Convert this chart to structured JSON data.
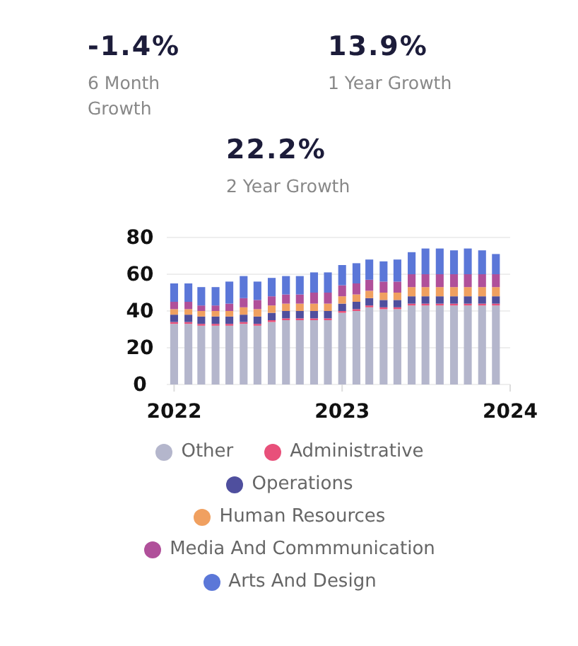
{
  "chart_data": [
    {
      "type": "other",
      "annotations": [
        "-1.4%",
        "6 Month Growth",
        "13.9%",
        "1 Year Growth",
        "22.2%",
        "2 Year Growth"
      ]
    },
    {
      "type": "bar",
      "stacked": true,
      "x": [
        "2022-01",
        "2022-02",
        "2022-03",
        "2022-04",
        "2022-05",
        "2022-06",
        "2022-07",
        "2022-08",
        "2022-09",
        "2022-10",
        "2022-11",
        "2022-12",
        "2023-01",
        "2023-02",
        "2023-03",
        "2023-04",
        "2023-05",
        "2023-06",
        "2023-07",
        "2023-08",
        "2023-09",
        "2023-10",
        "2023-11",
        "2023-12"
      ],
      "xlim": [
        "2021-12-16",
        "2024-01-01"
      ],
      "xticks": [
        {
          "value": "2022-01",
          "label": "2022"
        },
        {
          "value": "2023-01",
          "label": "2023"
        },
        {
          "value": "2024-01",
          "label": "2024"
        }
      ],
      "ylim": [
        0,
        80
      ],
      "yticks": [
        0,
        20,
        40,
        60,
        80
      ],
      "grid": "y",
      "legend": "bottom",
      "series": [
        {
          "name": "Other",
          "color": "#b4b6cc",
          "values": [
            33,
            33,
            32,
            32,
            32,
            33,
            32,
            34,
            35,
            35,
            35,
            35,
            39,
            40,
            42,
            41,
            41,
            43,
            43,
            43,
            43,
            43,
            43,
            43
          ]
        },
        {
          "name": "Administrative",
          "color": "#e8507a",
          "values": [
            1,
            1,
            1,
            1,
            1,
            1,
            1,
            1,
            1,
            1,
            1,
            1,
            1,
            1,
            1,
            1,
            1,
            1,
            1,
            1,
            1,
            1,
            1,
            1
          ]
        },
        {
          "name": "Operations",
          "color": "#4f4f9e",
          "values": [
            4,
            4,
            4,
            4,
            4,
            4,
            4,
            4,
            4,
            4,
            4,
            4,
            4,
            4,
            4,
            4,
            4,
            4,
            4,
            4,
            4,
            4,
            4,
            4
          ]
        },
        {
          "name": "Human Resources",
          "color": "#f0a060",
          "values": [
            3,
            3,
            3,
            3,
            3,
            4,
            4,
            4,
            4,
            4,
            4,
            4,
            4,
            4,
            4,
            4,
            4,
            5,
            5,
            5,
            5,
            5,
            5,
            5
          ]
        },
        {
          "name": "Media And Commmunication",
          "color": "#b0509a",
          "values": [
            4,
            4,
            3,
            3,
            4,
            5,
            5,
            5,
            5,
            5,
            6,
            6,
            6,
            6,
            6,
            6,
            6,
            7,
            7,
            7,
            7,
            7,
            7,
            7
          ]
        },
        {
          "name": "Arts And Design",
          "color": "#5b77d8",
          "values": [
            10,
            10,
            10,
            10,
            12,
            12,
            10,
            10,
            10,
            10,
            11,
            11,
            11,
            11,
            11,
            11,
            12,
            12,
            14,
            14,
            13,
            14,
            13,
            11
          ]
        }
      ]
    }
  ]
}
